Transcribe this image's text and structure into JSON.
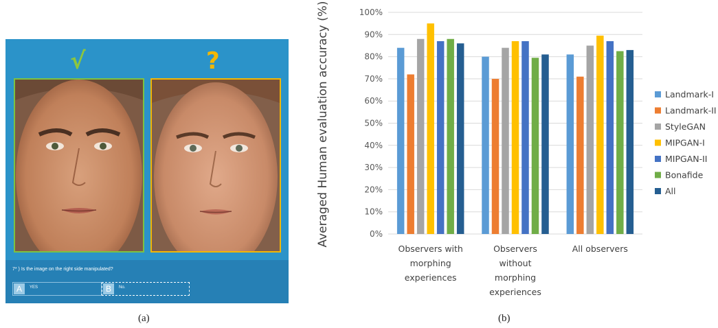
{
  "panel_a": {
    "check_mark": "√",
    "question_mark": "?",
    "question": "7* ) Is the image on the right side manipulated?",
    "answers": [
      {
        "key": "A",
        "text": "YES"
      },
      {
        "key": "B",
        "text": "No."
      }
    ],
    "caption": "(a)",
    "colors": {
      "background": "#2b93c9",
      "bonafide_frame": "#7cc242",
      "query_frame": "#f2b705"
    }
  },
  "panel_b": {
    "caption": "(b)"
  },
  "chart_data": {
    "type": "bar",
    "title": "",
    "ylabel": "Averaged Human evaluation accuracy (%)",
    "xlabel": "",
    "ylim": [
      0,
      100
    ],
    "yticks": [
      "0%",
      "10%",
      "20%",
      "30%",
      "40%",
      "50%",
      "60%",
      "70%",
      "80%",
      "90%",
      "100%"
    ],
    "categories": [
      [
        "Observers with",
        "morphing",
        "experiences"
      ],
      [
        "Observers",
        "without",
        "morphing",
        "experiences"
      ],
      [
        "All observers"
      ]
    ],
    "grid": true,
    "legend_position": "right",
    "series": [
      {
        "name": "Landmark-I",
        "color": "#5b9bd5",
        "values": [
          84,
          80,
          81
        ]
      },
      {
        "name": "Landmark-II",
        "color": "#ed7d31",
        "values": [
          72,
          70,
          71
        ]
      },
      {
        "name": "StyleGAN",
        "color": "#a5a5a5",
        "values": [
          88,
          84,
          85
        ]
      },
      {
        "name": "MIPGAN-I",
        "color": "#ffc000",
        "values": [
          95,
          87,
          89.5
        ]
      },
      {
        "name": "MIPGAN-II",
        "color": "#4472c4",
        "values": [
          87,
          87,
          87
        ]
      },
      {
        "name": "Bonafide",
        "color": "#70ad47",
        "values": [
          88,
          79.5,
          82.5
        ]
      },
      {
        "name": "All",
        "color": "#255e91",
        "values": [
          86,
          81,
          83
        ]
      }
    ]
  }
}
